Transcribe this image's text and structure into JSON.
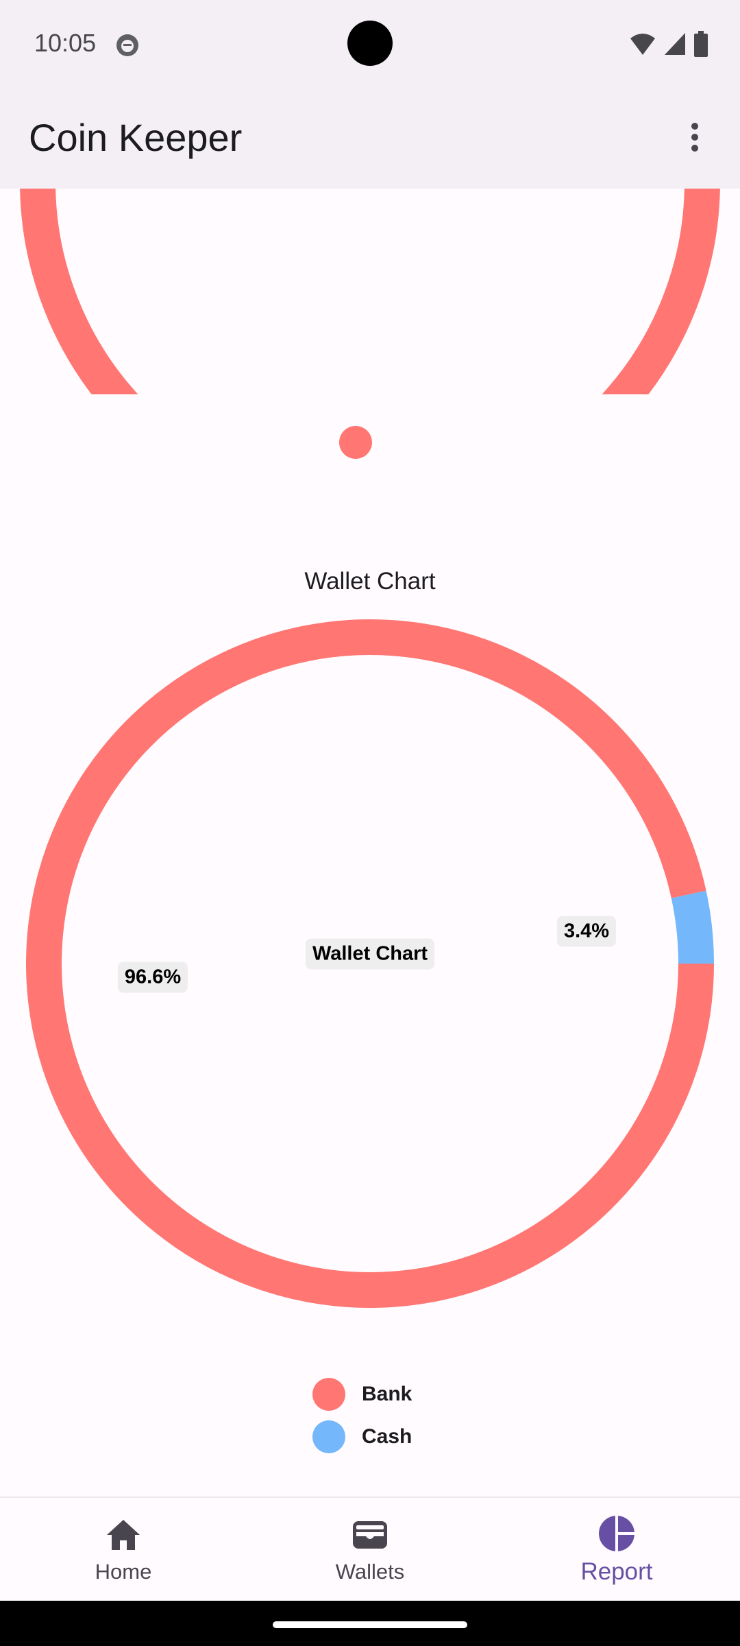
{
  "status_bar": {
    "time": "10:05",
    "icons": [
      "app-notification-icon",
      "wifi-icon",
      "signal-icon",
      "battery-icon"
    ]
  },
  "app_bar": {
    "title": "Coin Keeper",
    "overflow_icon": "more-vert-icon"
  },
  "colors": {
    "bank": "#FF7672",
    "cash": "#74B8FB",
    "accent": "#6750A4"
  },
  "chart_data": {
    "type": "pie",
    "title": "Wallet Chart",
    "center_label": "Wallet Chart",
    "categories": [
      "Bank",
      "Cash"
    ],
    "values": [
      96.6,
      3.4
    ],
    "data_labels": [
      "96.6%",
      "3.4%"
    ],
    "legend": [
      "Bank",
      "Cash"
    ],
    "legend_placement": "bottom"
  },
  "bottom_nav": {
    "items": [
      {
        "label": "Home",
        "icon": "home-icon"
      },
      {
        "label": "Wallets",
        "icon": "wallet-icon"
      },
      {
        "label": "Report",
        "icon": "pie-chart-icon"
      }
    ],
    "selected": "Report"
  }
}
